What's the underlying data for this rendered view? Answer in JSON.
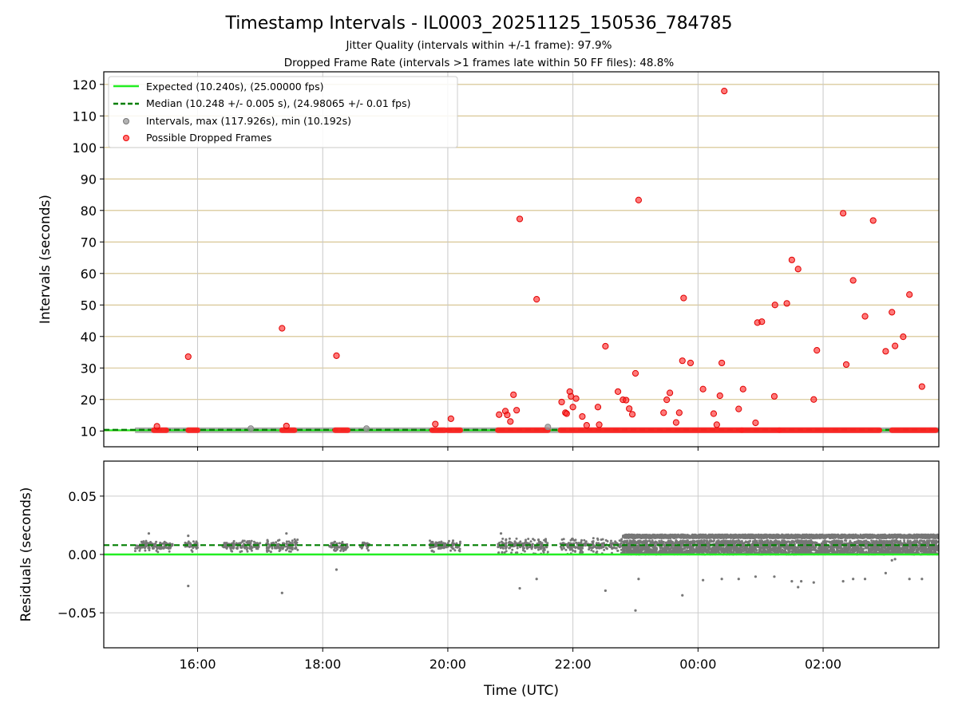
{
  "chart_data": [
    {
      "type": "scatter",
      "title": "Timestamp Intervals - IL0003_20251125_150536_784785",
      "subtitle_lines": [
        "Jitter Quality (intervals within +/-1 frame): 97.9%",
        "Dropped Frame Rate (intervals >1 frames late within 50 FF files): 48.8%"
      ],
      "ylabel": "Intervals (seconds)",
      "xlim_hours": [
        14.5,
        27.85
      ],
      "ylim": [
        5,
        124
      ],
      "yticks": [
        10,
        20,
        30,
        40,
        50,
        60,
        70,
        80,
        90,
        100,
        110,
        120
      ],
      "grid": "x and y",
      "legend_position": "upper-left",
      "legend": [
        "Expected (10.240s), (25.00000 fps)",
        "Median (10.248 +/- 0.005 s), (24.98065 +/- 0.01 fps)",
        "Intervals, max (117.926s), min (10.192s)",
        "Possible Dropped Frames"
      ],
      "expected_value": 10.24,
      "median_value": 10.248,
      "baseline_segments_hours": [
        [
          15.0,
          27.85
        ]
      ],
      "dropped_cluster_segments_hours": [
        [
          15.3,
          15.5
        ],
        [
          15.85,
          16.0
        ],
        [
          17.35,
          17.55
        ],
        [
          18.2,
          18.4
        ],
        [
          19.75,
          19.95
        ],
        [
          20.0,
          20.2
        ],
        [
          20.8,
          21.6
        ],
        [
          21.8,
          24.7
        ],
        [
          24.7,
          25.3
        ],
        [
          25.3,
          26.9
        ],
        [
          27.1,
          27.8
        ]
      ],
      "dropped_points": [
        {
          "x": 15.35,
          "y": 11.5
        },
        {
          "x": 15.85,
          "y": 33.6
        },
        {
          "x": 17.35,
          "y": 42.6
        },
        {
          "x": 17.42,
          "y": 11.6
        },
        {
          "x": 18.22,
          "y": 33.9
        },
        {
          "x": 19.8,
          "y": 12.2
        },
        {
          "x": 20.05,
          "y": 13.9
        },
        {
          "x": 20.82,
          "y": 15.2
        },
        {
          "x": 20.92,
          "y": 16.3
        },
        {
          "x": 20.95,
          "y": 15.1
        },
        {
          "x": 21.0,
          "y": 13.0
        },
        {
          "x": 21.05,
          "y": 21.5
        },
        {
          "x": 21.1,
          "y": 16.6
        },
        {
          "x": 21.15,
          "y": 77.3
        },
        {
          "x": 21.42,
          "y": 51.8
        },
        {
          "x": 21.82,
          "y": 19.2
        },
        {
          "x": 21.88,
          "y": 15.8
        },
        {
          "x": 21.9,
          "y": 15.5
        },
        {
          "x": 21.95,
          "y": 22.5
        },
        {
          "x": 21.97,
          "y": 21.0
        },
        {
          "x": 22.0,
          "y": 17.6
        },
        {
          "x": 22.05,
          "y": 20.3
        },
        {
          "x": 22.15,
          "y": 14.6
        },
        {
          "x": 22.22,
          "y": 11.8
        },
        {
          "x": 22.4,
          "y": 17.6
        },
        {
          "x": 22.42,
          "y": 12.0
        },
        {
          "x": 22.52,
          "y": 36.9
        },
        {
          "x": 22.72,
          "y": 22.5
        },
        {
          "x": 22.8,
          "y": 19.9
        },
        {
          "x": 22.85,
          "y": 19.8
        },
        {
          "x": 22.9,
          "y": 17.1
        },
        {
          "x": 22.95,
          "y": 15.3
        },
        {
          "x": 23.0,
          "y": 28.3
        },
        {
          "x": 23.05,
          "y": 83.3
        },
        {
          "x": 23.45,
          "y": 15.8
        },
        {
          "x": 23.5,
          "y": 19.9
        },
        {
          "x": 23.55,
          "y": 22.1
        },
        {
          "x": 23.65,
          "y": 12.7
        },
        {
          "x": 23.7,
          "y": 15.8
        },
        {
          "x": 23.75,
          "y": 32.3
        },
        {
          "x": 23.77,
          "y": 52.2
        },
        {
          "x": 23.88,
          "y": 31.6
        },
        {
          "x": 24.08,
          "y": 23.3
        },
        {
          "x": 24.25,
          "y": 15.5
        },
        {
          "x": 24.3,
          "y": 12.0
        },
        {
          "x": 24.35,
          "y": 21.2
        },
        {
          "x": 24.38,
          "y": 31.6
        },
        {
          "x": 24.42,
          "y": 117.9
        },
        {
          "x": 24.65,
          "y": 17.0
        },
        {
          "x": 24.72,
          "y": 23.3
        },
        {
          "x": 24.92,
          "y": 12.6
        },
        {
          "x": 24.95,
          "y": 44.4
        },
        {
          "x": 25.02,
          "y": 44.7
        },
        {
          "x": 25.22,
          "y": 21.0
        },
        {
          "x": 25.23,
          "y": 50.0
        },
        {
          "x": 25.42,
          "y": 50.5
        },
        {
          "x": 25.5,
          "y": 64.3
        },
        {
          "x": 25.6,
          "y": 61.4
        },
        {
          "x": 25.85,
          "y": 20.0
        },
        {
          "x": 25.9,
          "y": 35.6
        },
        {
          "x": 26.32,
          "y": 79.1
        },
        {
          "x": 26.37,
          "y": 31.1
        },
        {
          "x": 26.48,
          "y": 57.8
        },
        {
          "x": 26.67,
          "y": 46.4
        },
        {
          "x": 26.8,
          "y": 76.8
        },
        {
          "x": 27.0,
          "y": 35.3
        },
        {
          "x": 27.1,
          "y": 47.7
        },
        {
          "x": 27.15,
          "y": 37.0
        },
        {
          "x": 27.28,
          "y": 39.9
        },
        {
          "x": 27.38,
          "y": 53.3
        },
        {
          "x": 27.58,
          "y": 24.1
        }
      ],
      "interval_points": [
        {
          "x": 16.85,
          "y": 10.8
        },
        {
          "x": 18.7,
          "y": 10.8
        },
        {
          "x": 21.6,
          "y": 11.3
        }
      ]
    },
    {
      "type": "scatter",
      "xlabel": "Time (UTC)",
      "ylabel": "Residuals (seconds)",
      "xlim_hours": [
        14.5,
        27.85
      ],
      "ylim": [
        -0.08,
        0.08
      ],
      "yticks": [
        -0.05,
        0.0,
        0.05
      ],
      "ytick_labels": [
        "−0.05",
        "0.00",
        "0.05"
      ],
      "xticks_hours": [
        16,
        18,
        20,
        22,
        24,
        26
      ],
      "xtick_labels": [
        "16:00",
        "18:00",
        "20:00",
        "22:00",
        "00:00",
        "02:00"
      ],
      "grid": "x and y",
      "expected_residual": 0.0,
      "median_residual": 0.008,
      "residual_clusters": [
        {
          "start": 15.0,
          "end": 15.6,
          "lo": 0.002,
          "hi": 0.012
        },
        {
          "start": 15.8,
          "end": 16.0,
          "lo": 0.002,
          "hi": 0.012
        },
        {
          "start": 16.4,
          "end": 17.0,
          "lo": 0.002,
          "hi": 0.012
        },
        {
          "start": 17.1,
          "end": 17.6,
          "lo": 0.002,
          "hi": 0.013
        },
        {
          "start": 18.1,
          "end": 18.4,
          "lo": 0.003,
          "hi": 0.011
        },
        {
          "start": 18.6,
          "end": 18.75,
          "lo": 0.003,
          "hi": 0.011
        },
        {
          "start": 19.7,
          "end": 20.2,
          "lo": 0.002,
          "hi": 0.012
        },
        {
          "start": 20.8,
          "end": 21.6,
          "lo": 0.0,
          "hi": 0.014
        },
        {
          "start": 21.8,
          "end": 22.8,
          "lo": 0.0,
          "hi": 0.014
        },
        {
          "start": 22.8,
          "end": 27.85,
          "lo": 0.0,
          "hi": 0.017
        }
      ],
      "residual_outliers": [
        {
          "x": 15.22,
          "y": 0.018
        },
        {
          "x": 15.85,
          "y": -0.027
        },
        {
          "x": 15.85,
          "y": 0.016
        },
        {
          "x": 17.35,
          "y": -0.033
        },
        {
          "x": 17.42,
          "y": 0.018
        },
        {
          "x": 18.22,
          "y": -0.013
        },
        {
          "x": 20.85,
          "y": 0.018
        },
        {
          "x": 21.15,
          "y": -0.029
        },
        {
          "x": 21.42,
          "y": -0.021
        },
        {
          "x": 22.52,
          "y": -0.031
        },
        {
          "x": 23.0,
          "y": -0.048
        },
        {
          "x": 23.05,
          "y": -0.021
        },
        {
          "x": 23.75,
          "y": -0.035
        },
        {
          "x": 24.08,
          "y": -0.022
        },
        {
          "x": 24.38,
          "y": -0.021
        },
        {
          "x": 24.65,
          "y": -0.021
        },
        {
          "x": 24.92,
          "y": -0.019
        },
        {
          "x": 25.22,
          "y": -0.019
        },
        {
          "x": 25.5,
          "y": -0.023
        },
        {
          "x": 25.6,
          "y": -0.028
        },
        {
          "x": 25.65,
          "y": -0.023
        },
        {
          "x": 25.85,
          "y": -0.024
        },
        {
          "x": 26.32,
          "y": -0.023
        },
        {
          "x": 26.48,
          "y": -0.021
        },
        {
          "x": 26.67,
          "y": -0.021
        },
        {
          "x": 27.0,
          "y": -0.016
        },
        {
          "x": 27.1,
          "y": -0.005
        },
        {
          "x": 27.15,
          "y": -0.004
        },
        {
          "x": 27.38,
          "y": -0.021
        },
        {
          "x": 27.58,
          "y": -0.021
        }
      ]
    }
  ],
  "colors": {
    "expected": "#22ee22",
    "median": "#007f00",
    "intervals": "#9a9a9a",
    "dropped": "#ff2020",
    "grid_top": "#d4c08a",
    "grid_bottom": "#cccccc",
    "residuals": "#777777"
  }
}
